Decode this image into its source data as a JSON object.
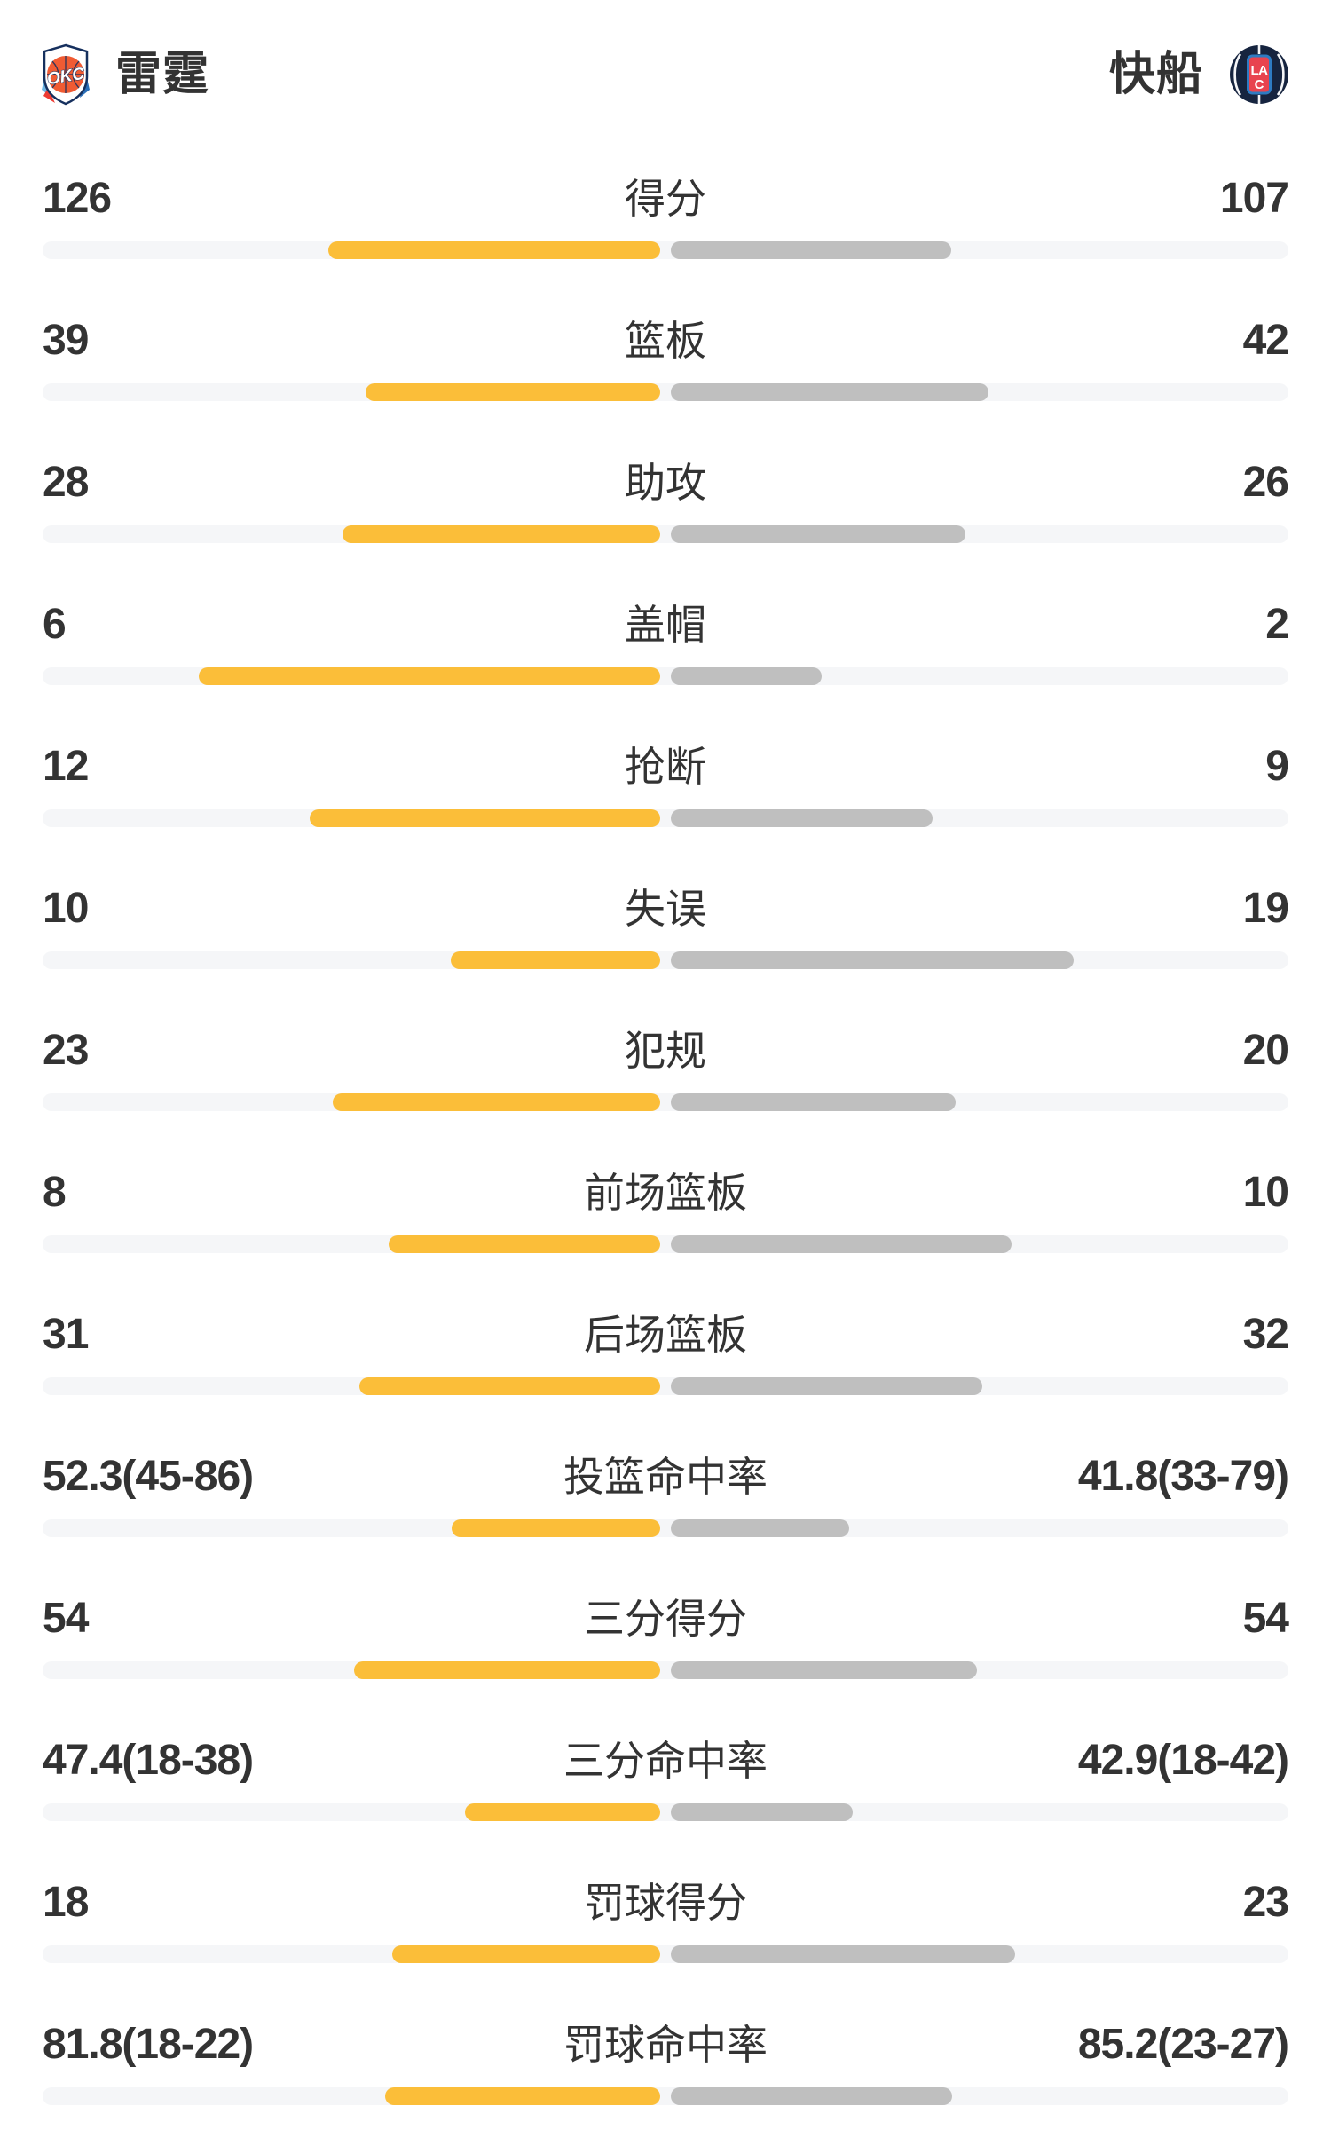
{
  "header": {
    "left_team": {
      "name": "雷霆",
      "logo": "okc-thunder-logo"
    },
    "right_team": {
      "name": "快船",
      "logo": "clippers-logo"
    }
  },
  "colors": {
    "background": "#FFFFFF",
    "text": "#333333",
    "track": "#F5F6F8",
    "left_bar": "#FBBE39",
    "right_bar": "#BFBFBF"
  },
  "chart_data": {
    "type": "bar",
    "note": "head-to-head team stats, bars grow outward from center; left=雷霆(yellow), right=快船(gray)",
    "stats": [
      {
        "label": "得分",
        "left": "126",
        "right": "107",
        "left_value": 126,
        "right_value": 107,
        "is_pct": false
      },
      {
        "label": "篮板",
        "left": "39",
        "right": "42",
        "left_value": 39,
        "right_value": 42,
        "is_pct": false
      },
      {
        "label": "助攻",
        "left": "28",
        "right": "26",
        "left_value": 28,
        "right_value": 26,
        "is_pct": false
      },
      {
        "label": "盖帽",
        "left": "6",
        "right": "2",
        "left_value": 6,
        "right_value": 2,
        "is_pct": false
      },
      {
        "label": "抢断",
        "left": "12",
        "right": "9",
        "left_value": 12,
        "right_value": 9,
        "is_pct": false
      },
      {
        "label": "失误",
        "left": "10",
        "right": "19",
        "left_value": 10,
        "right_value": 19,
        "is_pct": false
      },
      {
        "label": "犯规",
        "left": "23",
        "right": "20",
        "left_value": 23,
        "right_value": 20,
        "is_pct": false
      },
      {
        "label": "前场篮板",
        "left": "8",
        "right": "10",
        "left_value": 8,
        "right_value": 10,
        "is_pct": false
      },
      {
        "label": "后场篮板",
        "left": "31",
        "right": "32",
        "left_value": 31,
        "right_value": 32,
        "is_pct": false
      },
      {
        "label": "投篮命中率",
        "left": "52.3(45-86)",
        "right": "41.8(33-79)",
        "left_value": 52.3,
        "right_value": 41.8,
        "is_pct": true
      },
      {
        "label": "三分得分",
        "left": "54",
        "right": "54",
        "left_value": 54,
        "right_value": 54,
        "is_pct": false
      },
      {
        "label": "三分命中率",
        "left": "47.4(18-38)",
        "right": "42.9(18-42)",
        "left_value": 47.4,
        "right_value": 42.9,
        "is_pct": true
      },
      {
        "label": "罚球得分",
        "left": "18",
        "right": "23",
        "left_value": 18,
        "right_value": 23,
        "is_pct": false
      },
      {
        "label": "罚球命中率",
        "left": "81.8(18-22)",
        "right": "85.2(23-27)",
        "left_value": 81.8,
        "right_value": 85.2,
        "is_pct": true
      }
    ]
  }
}
